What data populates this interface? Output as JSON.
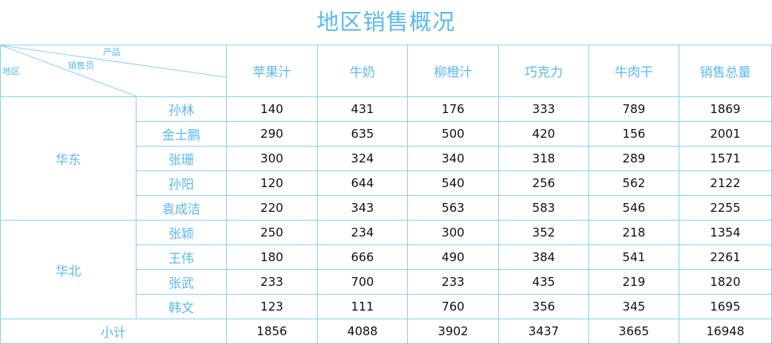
{
  "title": "地区销售概况",
  "header": {
    "corner": {
      "product": "产品",
      "seller": "销售员",
      "region": "地区"
    },
    "columns": [
      "苹果汁",
      "牛奶",
      "柳橙汁",
      "巧克力",
      "牛肉干",
      "销售总量"
    ]
  },
  "regions": [
    {
      "name": "华东",
      "rows": [
        {
          "seller": "孙林",
          "values": [
            "140",
            "431",
            "176",
            "333",
            "789",
            "1869"
          ]
        },
        {
          "seller": "金士鹏",
          "values": [
            "290",
            "635",
            "500",
            "420",
            "156",
            "2001"
          ]
        },
        {
          "seller": "张珊",
          "values": [
            "300",
            "324",
            "340",
            "318",
            "289",
            "1571"
          ]
        },
        {
          "seller": "孙阳",
          "values": [
            "120",
            "644",
            "540",
            "256",
            "562",
            "2122"
          ]
        },
        {
          "seller": "袁成洁",
          "values": [
            "220",
            "343",
            "563",
            "583",
            "546",
            "2255"
          ]
        }
      ]
    },
    {
      "name": "华北",
      "rows": [
        {
          "seller": "张颖",
          "values": [
            "250",
            "234",
            "300",
            "352",
            "218",
            "1354"
          ]
        },
        {
          "seller": "王伟",
          "values": [
            "180",
            "666",
            "490",
            "384",
            "541",
            "2261"
          ]
        },
        {
          "seller": "张武",
          "values": [
            "233",
            "700",
            "233",
            "435",
            "219",
            "1820"
          ]
        },
        {
          "seller": "韩文",
          "values": [
            "123",
            "111",
            "760",
            "356",
            "345",
            "1695"
          ]
        }
      ]
    }
  ],
  "subtotal": {
    "label": "小计",
    "values": [
      "1856",
      "4088",
      "3902",
      "3437",
      "3665",
      "16948"
    ]
  },
  "colors": {
    "accent": "#5bb8ee",
    "border": "#8fd0f2"
  }
}
